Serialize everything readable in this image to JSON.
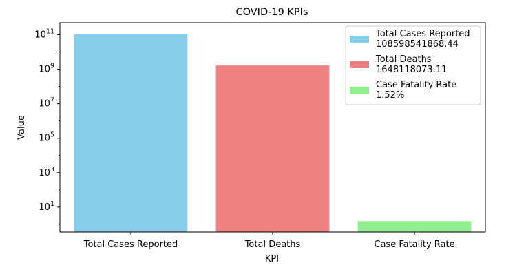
{
  "chart_data": {
    "type": "bar",
    "title": "COVID-19 KPIs",
    "xlabel": "KPI",
    "ylabel": "Value",
    "y_scale": "log",
    "ylim": [
      0.36,
      500000000000
    ],
    "y_ticks": [
      10,
      1000,
      100000,
      10000000,
      1000000000,
      100000000000
    ],
    "y_tick_labels": [
      {
        "base": "10",
        "exp": "1"
      },
      {
        "base": "10",
        "exp": "3"
      },
      {
        "base": "10",
        "exp": "5"
      },
      {
        "base": "10",
        "exp": "7"
      },
      {
        "base": "10",
        "exp": "9"
      },
      {
        "base": "10",
        "exp": "11"
      }
    ],
    "categories": [
      "Total Cases Reported",
      "Total Deaths",
      "Case Fatality Rate"
    ],
    "values": [
      108598541868.44,
      1648118073.11,
      1.52
    ],
    "colors": [
      "#87ceeb",
      "#f08080",
      "#90ee90"
    ],
    "legend_position": "top-right",
    "legend": [
      {
        "label": "Total Cases Reported",
        "value": "108598541868.44"
      },
      {
        "label": "Total Deaths",
        "value": "1648118073.11"
      },
      {
        "label": "Case Fatality Rate",
        "value": "1.52%"
      }
    ],
    "grid": false
  }
}
